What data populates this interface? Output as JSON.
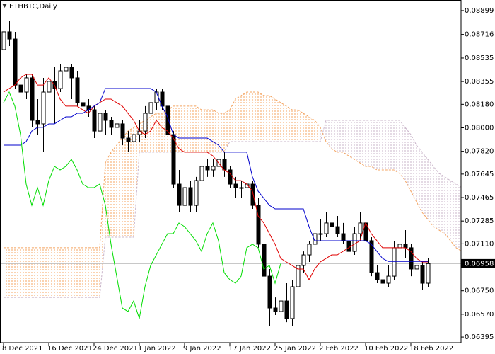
{
  "chart_data": {
    "type": "candlestick",
    "title": "ETHBTC,Daily",
    "categories": [
      "8 Dec 2021",
      null,
      null,
      null,
      null,
      null,
      null,
      null,
      "16 Dec 2021",
      null,
      null,
      null,
      null,
      null,
      null,
      null,
      "24 Dec 2021",
      null,
      null,
      null,
      null,
      null,
      null,
      null,
      "1 Jan 2022",
      null,
      null,
      null,
      null,
      null,
      null,
      null,
      "9 Jan 2022",
      null,
      null,
      null,
      null,
      null,
      null,
      null,
      "17 Jan 2022",
      null,
      null,
      null,
      null,
      null,
      null,
      null,
      "25 Jan 2022",
      null,
      null,
      null,
      null,
      null,
      null,
      null,
      "2 Feb 2022",
      null,
      null,
      null,
      null,
      null,
      null,
      null,
      "10 Feb 2022",
      null,
      null,
      null,
      null,
      null,
      null,
      null,
      "18 Feb 2022",
      null,
      null,
      null,
      null,
      null,
      null,
      null,
      null,
      null
    ],
    "open": [
      0.086,
      0.08736,
      0.08681,
      0.08328,
      0.08274,
      0.08383,
      0.08057,
      0.0803,
      0.08274,
      0.08356,
      0.08301,
      0.08437,
      0.08464,
      0.08383,
      0.08193,
      0.08166,
      0.08138,
      0.07975,
      0.08111,
      0.08057,
      0.08003,
      0.0803,
      0.07921,
      0.07894,
      0.07948,
      0.07975,
      0.08111,
      0.08193,
      0.08274,
      0.08166,
      0.07948,
      0.07568,
      0.07405,
      0.07541,
      0.07405,
      0.07595,
      0.07704,
      0.07677,
      0.07704,
      0.07758,
      0.07677,
      0.07568,
      0.07541,
      0.07541,
      0.07568,
      0.07405,
      0.07107,
      0.06862,
      0.06618,
      0.06591,
      0.06672,
      0.06537,
      0.06781,
      0.06944,
      0.07025,
      0.07107,
      0.07188,
      0.07188,
      0.0727,
      0.07242,
      0.07188,
      0.07134,
      0.07052,
      0.07188,
      0.0727,
      0.07134,
      0.06889,
      0.06835,
      0.06808,
      0.06862,
      0.0708,
      0.07107,
      0.0708,
      0.06917,
      0.06944,
      0.06808,
      null,
      null,
      null,
      null,
      null,
      null
    ],
    "high": [
      0.08899,
      0.08817,
      0.08736,
      0.08437,
      0.0841,
      0.0841,
      0.0822,
      0.08383,
      0.08437,
      0.08464,
      0.08491,
      0.08518,
      0.08491,
      0.08437,
      0.08274,
      0.0822,
      0.08166,
      0.08166,
      0.08138,
      0.08084,
      0.08057,
      0.08057,
      0.07975,
      0.08003,
      0.08057,
      0.08166,
      0.0822,
      0.08301,
      0.08301,
      0.08193,
      0.07975,
      0.07677,
      0.07595,
      0.07595,
      0.07623,
      0.07731,
      0.07758,
      0.07758,
      0.07785,
      0.07813,
      0.07704,
      0.07623,
      0.07595,
      0.07595,
      0.07595,
      0.0746,
      0.07134,
      0.06917,
      0.06699,
      0.06699,
      0.06808,
      0.06835,
      0.06971,
      0.07052,
      0.07134,
      0.07242,
      0.07297,
      0.07351,
      0.07514,
      0.07324,
      0.0727,
      0.07215,
      0.07242,
      0.07351,
      0.07297,
      0.07161,
      0.06944,
      0.06917,
      0.06944,
      0.07134,
      0.07188,
      0.07215,
      0.07107,
      0.06998,
      0.06971,
      0.06998,
      null,
      null,
      null,
      null,
      null,
      null
    ],
    "low": [
      0.08491,
      0.08627,
      0.08301,
      0.0822,
      0.0822,
      0.08003,
      0.07948,
      0.07813,
      0.08111,
      0.0803,
      0.08274,
      0.08328,
      0.0822,
      0.08166,
      0.08111,
      0.08084,
      0.07921,
      0.07948,
      0.07948,
      0.07948,
      0.07921,
      0.07867,
      0.07813,
      0.07867,
      0.07894,
      0.07921,
      0.0803,
      0.08138,
      0.08138,
      0.07921,
      0.07541,
      0.07351,
      0.07351,
      0.07351,
      0.07351,
      0.07541,
      0.07623,
      0.07623,
      0.0765,
      0.07623,
      0.07541,
      0.0746,
      0.0746,
      0.07487,
      0.07378,
      0.0708,
      0.06808,
      0.06482,
      0.06564,
      0.06537,
      0.06509,
      0.06482,
      0.06754,
      0.06889,
      0.06971,
      0.07052,
      0.07134,
      0.07161,
      0.07188,
      0.07161,
      0.07107,
      0.07025,
      0.07025,
      0.07134,
      0.07107,
      0.06862,
      0.06808,
      0.06781,
      0.06781,
      0.06835,
      0.07052,
      0.06998,
      0.06862,
      0.06862,
      0.06754,
      0.06781,
      null,
      null,
      null,
      null,
      null,
      null
    ],
    "close": [
      0.08736,
      0.08681,
      0.08328,
      0.08274,
      0.08383,
      0.08057,
      0.0803,
      0.08274,
      0.08356,
      0.08301,
      0.08437,
      0.08464,
      0.08383,
      0.08193,
      0.08166,
      0.08138,
      0.07975,
      0.08111,
      0.08057,
      0.08003,
      0.0803,
      0.07921,
      0.07894,
      0.07948,
      0.07975,
      0.08111,
      0.08193,
      0.08274,
      0.08166,
      0.07948,
      0.07568,
      0.07405,
      0.07541,
      0.07405,
      0.07595,
      0.07704,
      0.07677,
      0.07704,
      0.07758,
      0.07677,
      0.07568,
      0.07541,
      0.07541,
      0.07568,
      0.07405,
      0.07107,
      0.06862,
      0.06618,
      0.06591,
      0.06672,
      0.06537,
      0.06781,
      0.06944,
      0.07025,
      0.07107,
      0.07188,
      0.07188,
      0.0727,
      0.07242,
      0.07188,
      0.07134,
      0.07052,
      0.07188,
      0.0727,
      0.07134,
      0.06889,
      0.06835,
      0.06808,
      0.06862,
      0.0708,
      0.07107,
      0.0708,
      0.06917,
      0.06944,
      0.06808,
      0.06958,
      null,
      null,
      null,
      null,
      null,
      null
    ],
    "up_color": "#ffffff",
    "down_color": "#000000",
    "outline_color": "#000000",
    "tenkan": {
      "color": "#e00000",
      "values": [
        0.08274,
        0.08301,
        0.08328,
        0.08383,
        0.0841,
        0.0841,
        0.08328,
        0.08328,
        0.08383,
        0.08328,
        0.0822,
        0.08166,
        0.08166,
        0.08166,
        0.08138,
        0.08111,
        0.08166,
        0.08193,
        0.0822,
        0.0822,
        0.08193,
        0.08166,
        0.08111,
        0.08057,
        0.07975,
        0.07948,
        0.07975,
        0.08057,
        0.08003,
        0.07975,
        0.07921,
        0.0784,
        0.07813,
        0.07813,
        0.07813,
        0.07813,
        0.07813,
        0.07785,
        0.07731,
        0.07677,
        0.0765,
        0.07595,
        0.07595,
        0.07568,
        0.07514,
        0.07324,
        0.0727,
        0.07188,
        0.07107,
        0.06998,
        0.06971,
        0.06944,
        0.06917,
        0.06917,
        0.06835,
        0.06917,
        0.06971,
        0.06998,
        0.07025,
        0.07025,
        0.07052,
        0.0708,
        0.07107,
        0.07134,
        0.0727,
        0.07188,
        0.07134,
        0.0708,
        0.0708,
        0.0708,
        0.0708,
        0.0708,
        0.07052,
        0.06998,
        0.06971,
        0.06971,
        null,
        null,
        null,
        null,
        null,
        null
      ]
    },
    "kijun": {
      "color": "#0000cc",
      "values": [
        0.07867,
        0.07867,
        0.07867,
        0.07867,
        0.07894,
        0.07975,
        0.08003,
        0.08003,
        0.0803,
        0.0803,
        0.08057,
        0.08084,
        0.08084,
        0.08111,
        0.08111,
        0.08138,
        0.08166,
        0.08193,
        0.08301,
        0.08301,
        0.08301,
        0.08301,
        0.08301,
        0.08301,
        0.08301,
        0.08301,
        0.08301,
        0.08274,
        0.08166,
        0.08084,
        0.07948,
        0.07921,
        0.07921,
        0.07921,
        0.07921,
        0.07921,
        0.07921,
        0.07894,
        0.07867,
        0.07813,
        0.07813,
        0.07813,
        0.07813,
        0.07813,
        0.07623,
        0.07514,
        0.0746,
        0.07405,
        0.07378,
        0.07378,
        0.07378,
        0.07378,
        0.07378,
        0.07378,
        0.07242,
        0.07134,
        0.07134,
        0.07134,
        0.07134,
        0.07134,
        0.07134,
        0.07134,
        0.07134,
        0.07134,
        0.07134,
        0.07107,
        0.07052,
        0.06998,
        0.06975,
        0.06975,
        0.06975,
        0.06975,
        0.06975,
        0.06975,
        0.06975,
        0.06975,
        null,
        null,
        null,
        null,
        null,
        null
      ]
    },
    "chikou": {
      "color": "#00dd00",
      "values": [
        0.08193,
        0.08274,
        0.08166,
        0.07948,
        0.07568,
        0.07405,
        0.07541,
        0.07405,
        0.07595,
        0.07704,
        0.07677,
        0.07704,
        0.07758,
        0.07677,
        0.07568,
        0.07541,
        0.07541,
        0.07568,
        0.07405,
        0.07107,
        0.06862,
        0.06618,
        0.06591,
        0.06672,
        0.06537,
        0.06781,
        0.06944,
        0.07025,
        0.07107,
        0.07188,
        0.07188,
        0.0727,
        0.07242,
        0.07188,
        0.07134,
        0.07052,
        0.07188,
        0.0727,
        0.07134,
        0.06889,
        0.06835,
        0.06808,
        0.06862,
        0.0708,
        0.07107,
        0.0708,
        0.06917,
        0.06944,
        0.06808,
        0.06958,
        null,
        null,
        null,
        null,
        null,
        null,
        null,
        null,
        null,
        null,
        null,
        null,
        null,
        null,
        null,
        null,
        null,
        null,
        null,
        null,
        null,
        null,
        null,
        null,
        null,
        null,
        null,
        null,
        null,
        null,
        null,
        null
      ]
    },
    "senkou_a": {
      "color": "#f4a460",
      "values": [
        0.0708,
        0.0708,
        0.0708,
        0.0708,
        0.0708,
        0.0708,
        0.0708,
        0.0708,
        0.0708,
        0.0708,
        0.0708,
        0.0708,
        0.0708,
        0.0708,
        0.0708,
        0.0708,
        0.0708,
        0.0708,
        0.07731,
        0.07813,
        0.07867,
        0.07921,
        0.07975,
        0.08003,
        0.0803,
        0.08057,
        0.08084,
        0.08111,
        0.08111,
        0.08138,
        0.08166,
        0.08166,
        0.08166,
        0.08166,
        0.08166,
        0.08138,
        0.08138,
        0.08138,
        0.08111,
        0.08111,
        0.08138,
        0.0822,
        0.08247,
        0.08274,
        0.08274,
        0.08274,
        0.08247,
        0.08247,
        0.0822,
        0.08193,
        0.08166,
        0.08138,
        0.08138,
        0.08111,
        0.08084,
        0.08057,
        0.08003,
        0.07894,
        0.0784,
        0.07813,
        0.07813,
        0.07785,
        0.07758,
        0.07731,
        0.07704,
        0.07704,
        0.07677,
        0.07677,
        0.07677,
        0.07677,
        0.0765,
        0.07595,
        0.07514,
        0.07432,
        0.07351,
        0.07297,
        0.07242,
        0.07215,
        0.07188,
        0.07134,
        0.0708,
        0.07052
      ]
    },
    "senkou_b": {
      "color": "#c9b4c9",
      "values": [
        0.06699,
        0.06699,
        0.06699,
        0.06699,
        0.06699,
        0.06699,
        0.06699,
        0.06699,
        0.06699,
        0.06699,
        0.06699,
        0.06699,
        0.06699,
        0.06699,
        0.06699,
        0.06699,
        0.06699,
        0.06699,
        0.07161,
        0.07161,
        0.07161,
        0.07161,
        0.07161,
        0.07161,
        0.07813,
        0.07813,
        0.07813,
        0.07813,
        0.07813,
        0.07813,
        0.07813,
        0.07813,
        0.07813,
        0.07813,
        0.07813,
        0.07813,
        0.07813,
        0.07813,
        0.07813,
        0.07813,
        0.07894,
        0.07894,
        0.07894,
        0.07894,
        0.07894,
        0.07894,
        0.07894,
        0.07894,
        0.07894,
        0.07894,
        0.07894,
        0.07894,
        0.07894,
        0.07894,
        0.07894,
        0.07894,
        0.07894,
        0.08057,
        0.08057,
        0.08057,
        0.08057,
        0.08057,
        0.08057,
        0.08057,
        0.08057,
        0.08057,
        0.08057,
        0.08057,
        0.08057,
        0.08057,
        0.08057,
        0.08003,
        0.07948,
        0.07867,
        0.07813,
        0.07758,
        0.07704,
        0.0765,
        0.07623,
        0.07595,
        0.07568,
        0.07541
      ]
    },
    "price_line_color": "#c0c0c0",
    "ylim": [
      0.06352,
      0.0898
    ],
    "yticks": [
      0.08899,
      0.08716,
      0.08535,
      0.08355,
      {
        "value": 0.0818,
        "label": "0.08180"
      },
      {
        "value": 0.08,
        "label": "0.08000"
      },
      {
        "value": 0.0782,
        "label": "0.07820"
      },
      0.07645,
      0.07465,
      0.07285,
      {
        "value": 0.0711,
        "label": "0.07110"
      },
      {
        "value": 0.0675,
        "label": "0.06750"
      },
      {
        "value": 0.0657,
        "label": "0.06570"
      },
      0.06395
    ]
  }
}
